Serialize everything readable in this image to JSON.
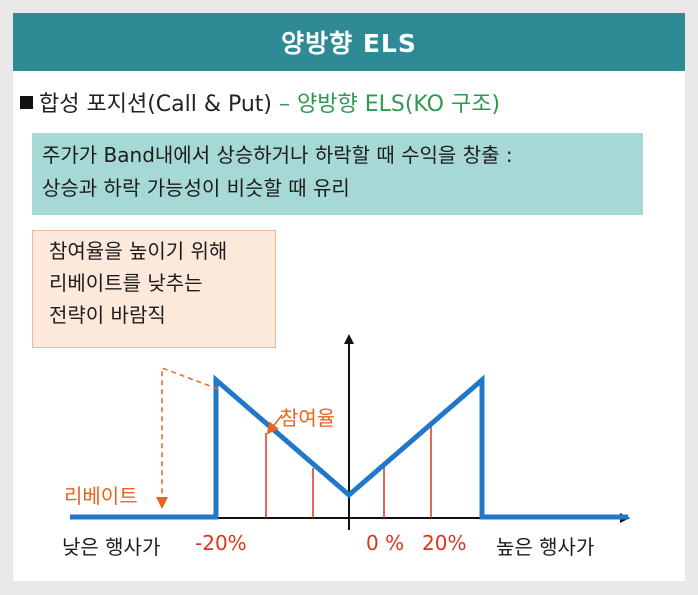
{
  "title": "양방향 ELS",
  "heading": {
    "main": "합성 포지션(Call & Put)",
    "accent": " – 양방향 ELS(KO 구조)"
  },
  "description": {
    "line1": "주가가 Band내에서 상승하거나 하락할 때 수익을 창출 :",
    "line2": "상승과 하락 가능성이 비슷할 때 유리"
  },
  "note": {
    "line1": "참여율을 높이기 위해",
    "line2": "리베이트를 낮추는",
    "line3": "전략이 바람직"
  },
  "diagram": {
    "rebate_label": "리베이트",
    "participation_label": "참여율",
    "x_left_label": "낮은 행사가",
    "x_right_label": "높은 행사가",
    "tick_minus20": "-20%",
    "tick_0": "0 %",
    "tick_plus20": "20%"
  },
  "colors": {
    "title_bar": "#2e8b95",
    "accent_green": "#2f9a4f",
    "desc_box": "#a6d8d6",
    "note_box": "#fde9dc",
    "payoff_line": "#1f78c8",
    "orange": "#e8641e",
    "red": "#d9361b"
  }
}
